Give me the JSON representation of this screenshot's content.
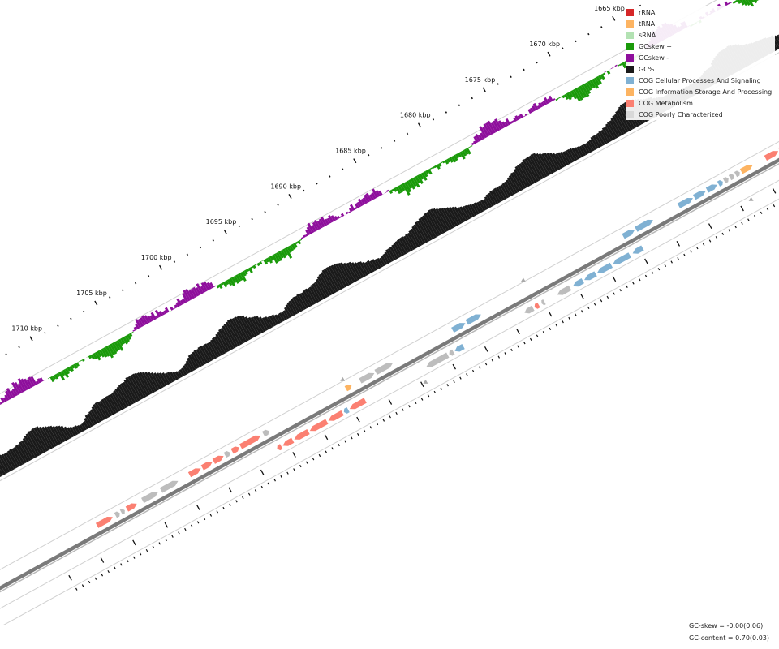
{
  "legend": [
    {
      "label": "rRNA",
      "color": "#d62728"
    },
    {
      "label": "tRNA",
      "color": "#fdb462"
    },
    {
      "label": "sRNA",
      "color": "#b3e2b3"
    },
    {
      "label": "GCskew +",
      "color": "#1a9a0a"
    },
    {
      "label": "GCskew -",
      "color": "#8e0f9c"
    },
    {
      "label": "GC%",
      "color": "#1a1a1a"
    },
    {
      "label": "COG Cellular Processes And Signaling",
      "color": "#80b1d3"
    },
    {
      "label": "COG Information Storage And Processing",
      "color": "#fdb462"
    },
    {
      "label": "COG Metabolism",
      "color": "#fb8072"
    },
    {
      "label": "COG Poorly Characterized",
      "color": "#d9d9d9"
    }
  ],
  "stats": {
    "gc_skew": "GC-skew = -0.00(0.06)",
    "gc_content": "GC-content = 0.70(0.03)"
  },
  "position_labels": [
    "1665 kbp",
    "1670 kbp",
    "1675 kbp",
    "1680 kbp",
    "1685 kbp",
    "1690 kbp",
    "1695 kbp",
    "1700 kbp",
    "1705 kbp",
    "1710 kbp"
  ],
  "chart_data": {
    "type": "genome-map",
    "positions_kbp": [
      1665,
      1670,
      1675,
      1680,
      1685,
      1690,
      1695,
      1700,
      1705,
      1710
    ],
    "tracks": [
      "GC-skew",
      "GC%",
      "genes (forward / reverse strand)"
    ],
    "gc_skew_mean": -0.0,
    "gc_skew_sd": 0.06,
    "gc_content_mean": 0.7,
    "gc_content_sd": 0.03
  }
}
